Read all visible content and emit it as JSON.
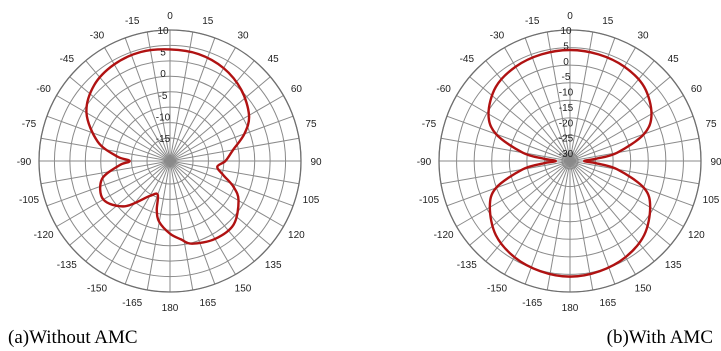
{
  "chart_data": [
    {
      "type": "polar",
      "caption": "(a)Without AMC",
      "angle_labels": [
        "0",
        "15",
        "30",
        "45",
        "60",
        "75",
        "90",
        "105",
        "120",
        "135",
        "150",
        "165",
        "180",
        "-165",
        "-150",
        "-135",
        "-120",
        "-105",
        "-90",
        "-75",
        "-60",
        "-45",
        "-30",
        "-15"
      ],
      "angle_values": [
        0,
        15,
        30,
        45,
        60,
        75,
        90,
        105,
        120,
        135,
        150,
        165,
        180,
        -165,
        -150,
        -135,
        -120,
        -105,
        -90,
        -75,
        -60,
        -45,
        -30,
        -15
      ],
      "radial_labels": [
        "-15",
        "-10",
        "-5",
        "0",
        "5",
        "10"
      ],
      "radial_values": [
        -15,
        -10,
        -5,
        0,
        5,
        10
      ],
      "rlim": [
        -15,
        10
      ],
      "grid": true,
      "series": [
        {
          "color": "#b01212",
          "theta": [
            0,
            15,
            30,
            45,
            60,
            70,
            80,
            90,
            97,
            105,
            112,
            120,
            135,
            150,
            165,
            172,
            180,
            -170,
            -165,
            -160,
            -150,
            -135,
            -120,
            -105,
            -95,
            -90,
            -85,
            -75,
            -60,
            -45,
            -30,
            -15
          ],
          "r": [
            5.5,
            5.3,
            4.5,
            3.0,
            0.8,
            -2.0,
            -5.5,
            -7.5,
            -9.3,
            -7.5,
            -4.5,
            -2.0,
            0.5,
            0.5,
            -0.5,
            -2.0,
            -3.5,
            -6.0,
            -8.5,
            -12.0,
            -11.0,
            -5.5,
            -2.5,
            -4.0,
            -8.5,
            -11.0,
            -8.0,
            -3.0,
            2.0,
            4.5,
            5.5,
            5.8
          ]
        }
      ]
    },
    {
      "type": "polar",
      "caption": "(b)With AMC",
      "angle_labels": [
        "0",
        "15",
        "30",
        "45",
        "60",
        "75",
        "90",
        "105",
        "120",
        "135",
        "150",
        "165",
        "180",
        "-165",
        "-150",
        "-135",
        "-120",
        "-105",
        "-90",
        "-75",
        "-60",
        "-45",
        "-30",
        "-15"
      ],
      "angle_values": [
        0,
        15,
        30,
        45,
        60,
        75,
        90,
        105,
        120,
        135,
        150,
        165,
        180,
        -165,
        -150,
        -135,
        -120,
        -105,
        -90,
        -75,
        -60,
        -45,
        -30,
        -15
      ],
      "radial_labels": [
        "-30",
        "-25",
        "-20",
        "-15",
        "-10",
        "-5",
        "0",
        "5",
        "10"
      ],
      "radial_values": [
        -30,
        -25,
        -20,
        -15,
        -10,
        -5,
        0,
        5,
        10
      ],
      "rlim": [
        -30,
        10
      ],
      "grid": true,
      "series": [
        {
          "color": "#b01212",
          "theta": [
            0,
            15,
            30,
            45,
            60,
            70,
            80,
            85,
            90,
            95,
            100,
            110,
            120,
            135,
            150,
            165,
            180,
            -165,
            -150,
            -135,
            -120,
            -110,
            -100,
            -95,
            -90,
            -85,
            -80,
            -70,
            -60,
            -45,
            -30,
            -15
          ],
          "r": [
            3.5,
            3.3,
            2.8,
            1.5,
            -2.0,
            -7.0,
            -17.0,
            -24.0,
            -28.0,
            -24.0,
            -17.0,
            -7.0,
            -2.5,
            1.5,
            3.5,
            4.5,
            5.0,
            4.5,
            3.5,
            1.5,
            -2.5,
            -7.0,
            -17.0,
            -24.0,
            -28.0,
            -24.0,
            -17.0,
            -7.0,
            -2.0,
            1.5,
            2.8,
            3.3
          ]
        }
      ]
    }
  ]
}
